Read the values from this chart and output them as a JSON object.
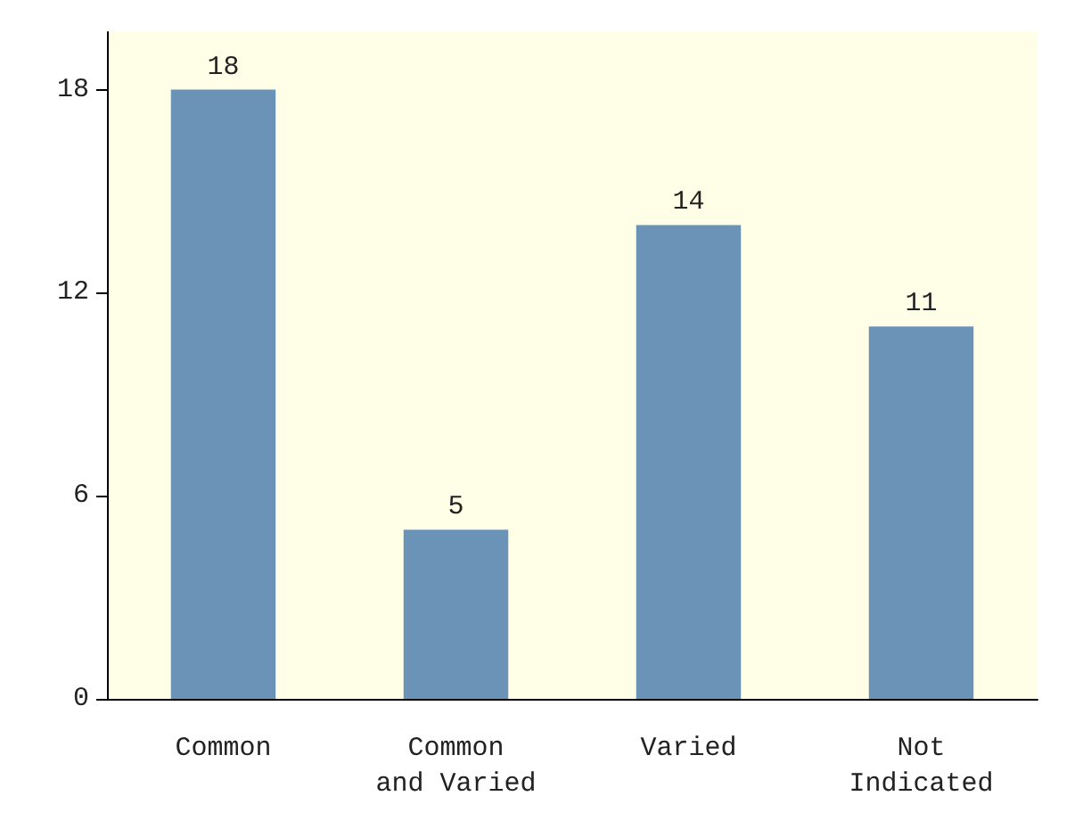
{
  "chart_data": {
    "type": "bar",
    "categories": [
      "Common",
      "Common\nand Varied",
      "Varied",
      "Not\nIndicated"
    ],
    "values": [
      18,
      5,
      14,
      11
    ],
    "color": "#6b93b8",
    "ylim": [
      0,
      19.7
    ],
    "yticks": [
      0,
      6,
      12,
      18
    ],
    "data_labels": true
  }
}
